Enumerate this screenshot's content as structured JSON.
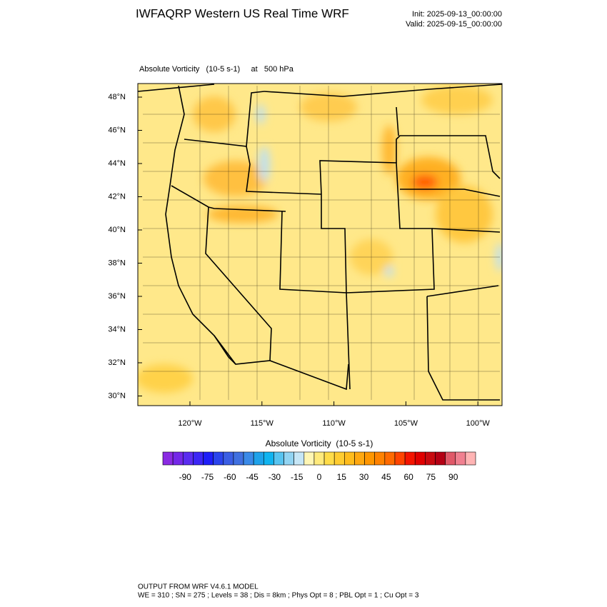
{
  "header": {
    "title": "IWFAQRP Western US Real Time WRF",
    "init": "Init: 2025-09-13_00:00:00",
    "valid": "Valid: 2025-09-15_00:00:00"
  },
  "map": {
    "field_label": "Absolute Vorticity   (10-5 s-1)     at   500 hPa",
    "lat_labels": [
      "48°N",
      "46°N",
      "44°N",
      "42°N",
      "40°N",
      "38°N",
      "36°N",
      "34°N",
      "32°N",
      "30°N"
    ],
    "lon_labels": [
      "120°W",
      "115°W",
      "110°W",
      "105°W",
      "100°W"
    ]
  },
  "colorbar": {
    "title": "Absolute Vorticity  (10-5 s-1)",
    "lim": [
      -105,
      105
    ],
    "ticks": [
      -90,
      -75,
      -60,
      -45,
      -30,
      -15,
      0,
      15,
      30,
      45,
      60,
      75,
      90
    ],
    "colors": [
      "#8a2be2",
      "#7428e8",
      "#5a2cf0",
      "#3c26f5",
      "#1e1ef8",
      "#2a44ec",
      "#3a5ee4",
      "#4070e0",
      "#3a8ae8",
      "#1ea2ea",
      "#10b4f0",
      "#58c4f0",
      "#92d4f2",
      "#c6e6f6",
      "#fff6b4",
      "#ffea7c",
      "#ffdc48",
      "#ffcc30",
      "#ffbc1c",
      "#ffa810",
      "#ff9600",
      "#ff8200",
      "#ff6a00",
      "#ff4400",
      "#f41400",
      "#e00000",
      "#c80a10",
      "#b40014",
      "#e05868",
      "#f08090",
      "#ffb4b4"
    ]
  },
  "footer": {
    "line1": "OUTPUT FROM WRF V4.6.1 MODEL",
    "line2": "WE = 310 ; SN = 275 ; Levels = 38 ; Dis = 8km ; Phys Opt = 8 ; PBL Opt = 1 ; Cu Opt = 3"
  }
}
